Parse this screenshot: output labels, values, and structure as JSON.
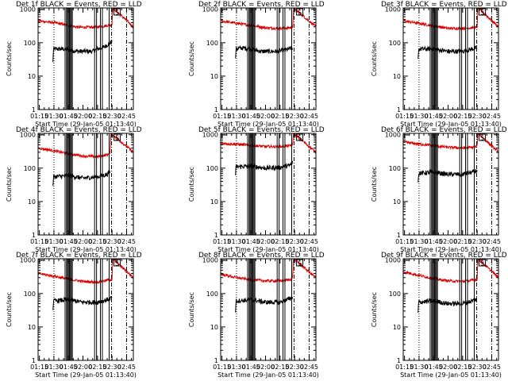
{
  "page": {
    "layout": "3x3 grid of rate plots"
  },
  "colors": {
    "events": "#000000",
    "lld": "#dd0000",
    "axis": "#000000"
  },
  "common": {
    "ylabel": "Counts/sec",
    "xlabel": "Start Time (29-Jan-05 01:13:40)",
    "x_ticks": [
      "01:15",
      "01:30",
      "01:45",
      "02:00",
      "02:15",
      "02:30",
      "02:45"
    ],
    "x_tick_minutes": [
      15,
      30,
      45,
      60,
      75,
      90,
      105
    ],
    "x_range_minutes": [
      13.67,
      112
    ],
    "y_ticks": [
      "1",
      "10",
      "100",
      "1000"
    ],
    "y_tick_values": [
      1,
      10,
      100,
      1000
    ],
    "y_range": [
      1,
      1100
    ],
    "y_scale": "log",
    "markers": {
      "event_lines": "solid vertical",
      "dotted_line": "dotted vertical",
      "dashed_lines": "dash-dot vertical",
      "flag_label": "S"
    }
  },
  "chart_data": [
    {
      "type": "line",
      "title": "Det 1f BLACK = Events, RED = LLD",
      "xlabel": "Start Time (29-Jan-05 01:13:40)",
      "ylabel": "Counts/sec",
      "series": [
        {
          "name": "Events",
          "color": "#000000",
          "x": [
            29,
            29.5,
            40,
            55,
            70,
            75,
            82,
            86,
            90
          ],
          "y": [
            25,
            65,
            65,
            55,
            55,
            65,
            75,
            90,
            110
          ]
        },
        {
          "name": "LLD",
          "color": "#dd0000",
          "x": [
            14,
            30,
            45,
            55,
            70,
            80,
            86,
            90,
            90.5,
            91,
            112
          ],
          "y": [
            450,
            400,
            330,
            290,
            290,
            310,
            330,
            350,
            900,
            1100,
            300
          ]
        }
      ]
    },
    {
      "type": "line",
      "title": "Det 2f BLACK = Events, RED = LLD",
      "xlabel": "Start Time (29-Jan-05 01:13:40)",
      "ylabel": "Counts/sec",
      "series": [
        {
          "name": "Events",
          "color": "#000000",
          "x": [
            29,
            29.5,
            35,
            45,
            55,
            70,
            80,
            88
          ],
          "y": [
            30,
            65,
            70,
            65,
            55,
            55,
            60,
            70
          ]
        },
        {
          "name": "LLD",
          "color": "#dd0000",
          "x": [
            14,
            30,
            45,
            60,
            75,
            85,
            88,
            88.5,
            89,
            112
          ],
          "y": [
            450,
            380,
            330,
            280,
            270,
            280,
            300,
            650,
            1100,
            300
          ]
        }
      ]
    },
    {
      "type": "line",
      "title": "Det 3f BLACK = Events, RED = LLD",
      "xlabel": "Start Time (29-Jan-05 01:13:40)",
      "ylabel": "Counts/sec",
      "series": [
        {
          "name": "Events",
          "color": "#000000",
          "x": [
            29,
            29.5,
            45,
            60,
            75,
            85,
            90
          ],
          "y": [
            30,
            65,
            65,
            55,
            55,
            65,
            70
          ]
        },
        {
          "name": "LLD",
          "color": "#dd0000",
          "x": [
            14,
            30,
            45,
            60,
            75,
            85,
            90,
            90.5,
            91,
            112
          ],
          "y": [
            450,
            380,
            320,
            270,
            270,
            280,
            290,
            800,
            1100,
            300
          ]
        }
      ]
    },
    {
      "type": "line",
      "title": "Det 4f BLACK = Events, RED = LLD",
      "xlabel": "Start Time (29-Jan-05 01:13:40)",
      "ylabel": "Counts/sec",
      "series": [
        {
          "name": "Events",
          "color": "#000000",
          "x": [
            29,
            29.5,
            45,
            60,
            75,
            85,
            88
          ],
          "y": [
            25,
            55,
            60,
            50,
            55,
            65,
            80
          ]
        },
        {
          "name": "LLD",
          "color": "#dd0000",
          "x": [
            14,
            30,
            45,
            60,
            75,
            85,
            88,
            88.5,
            89,
            112
          ],
          "y": [
            400,
            330,
            270,
            230,
            220,
            250,
            280,
            700,
            1100,
            300
          ]
        }
      ]
    },
    {
      "type": "line",
      "title": "Det 5f BLACK = Events, RED = LLD",
      "xlabel": "Start Time (29-Jan-05 01:13:40)",
      "ylabel": "Counts/sec",
      "series": [
        {
          "name": "Events",
          "color": "#000000",
          "x": [
            29,
            29.5,
            45,
            60,
            75,
            85,
            88
          ],
          "y": [
            60,
            110,
            115,
            100,
            105,
            120,
            150
          ]
        },
        {
          "name": "LLD",
          "color": "#dd0000",
          "x": [
            14,
            30,
            45,
            60,
            75,
            85,
            88,
            88.5,
            89,
            112
          ],
          "y": [
            550,
            520,
            480,
            440,
            440,
            470,
            500,
            900,
            1100,
            300
          ]
        }
      ]
    },
    {
      "type": "line",
      "title": "Det 6f BLACK = Events, RED = LLD",
      "xlabel": "Start Time (29-Jan-05 01:13:40)",
      "ylabel": "Counts/sec",
      "series": [
        {
          "name": "Events",
          "color": "#000000",
          "x": [
            29,
            29.5,
            45,
            60,
            75,
            85,
            90
          ],
          "y": [
            35,
            70,
            75,
            65,
            65,
            75,
            85
          ]
        },
        {
          "name": "LLD",
          "color": "#dd0000",
          "x": [
            14,
            30,
            45,
            60,
            75,
            85,
            90,
            90.5,
            91,
            112
          ],
          "y": [
            600,
            530,
            470,
            420,
            400,
            420,
            450,
            900,
            1100,
            300
          ]
        }
      ]
    },
    {
      "type": "line",
      "title": "Det 7f BLACK = Events, RED = LLD",
      "xlabel": "Start Time (29-Jan-05 01:13:40)",
      "ylabel": "Counts/sec",
      "series": [
        {
          "name": "Events",
          "color": "#000000",
          "x": [
            29,
            29.5,
            45,
            60,
            75,
            85,
            90
          ],
          "y": [
            30,
            60,
            65,
            55,
            55,
            65,
            75
          ]
        },
        {
          "name": "LLD",
          "color": "#dd0000",
          "x": [
            14,
            30,
            45,
            60,
            75,
            85,
            90,
            90.5,
            91,
            112
          ],
          "y": [
            400,
            330,
            270,
            230,
            220,
            250,
            270,
            800,
            1100,
            300
          ]
        }
      ]
    },
    {
      "type": "line",
      "title": "Det 8f BLACK = Events, RED = LLD",
      "xlabel": "Start Time (29-Jan-05 01:13:40)",
      "ylabel": "Counts/sec",
      "series": [
        {
          "name": "Events",
          "color": "#000000",
          "x": [
            29,
            29.5,
            45,
            60,
            75,
            85,
            88
          ],
          "y": [
            30,
            60,
            65,
            55,
            55,
            70,
            80
          ]
        },
        {
          "name": "LLD",
          "color": "#dd0000",
          "x": [
            14,
            30,
            45,
            60,
            75,
            85,
            88,
            88.5,
            89,
            112
          ],
          "y": [
            380,
            300,
            260,
            240,
            240,
            260,
            290,
            800,
            1100,
            300
          ]
        }
      ]
    },
    {
      "type": "line",
      "title": "Det 9f BLACK = Events, RED = LLD",
      "xlabel": "Start Time (29-Jan-05 01:13:40)",
      "ylabel": "Counts/sec",
      "series": [
        {
          "name": "Events",
          "color": "#000000",
          "x": [
            29,
            29.5,
            45,
            60,
            75,
            85,
            90
          ],
          "y": [
            25,
            55,
            60,
            50,
            50,
            60,
            70
          ]
        },
        {
          "name": "LLD",
          "color": "#dd0000",
          "x": [
            14,
            30,
            45,
            60,
            75,
            85,
            90,
            90.5,
            91,
            112
          ],
          "y": [
            450,
            350,
            280,
            240,
            230,
            250,
            270,
            800,
            1100,
            300
          ]
        }
      ]
    }
  ],
  "vertical_markers": {
    "dotted_minutes": [
      30
    ],
    "solid_minutes": [
      41.5,
      43,
      44,
      45,
      46,
      47,
      48,
      49,
      72,
      74,
      78,
      80,
      87
    ],
    "dashdot_minutes": [
      89.5,
      105
    ],
    "flag_minutes": 92
  }
}
